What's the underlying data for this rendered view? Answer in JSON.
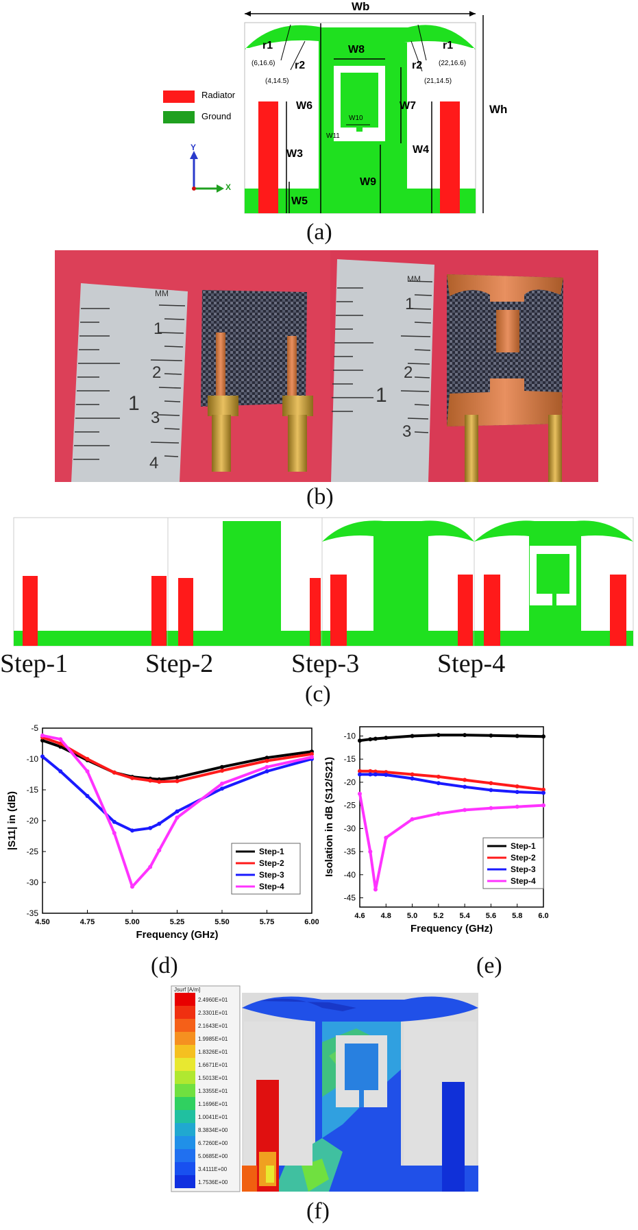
{
  "figure_a": {
    "caption": "(a)",
    "legend": {
      "radiator": "Radiator",
      "ground": "Ground"
    },
    "axes": {
      "y": "Y",
      "x": "X"
    },
    "dims": {
      "Wb": "Wb",
      "Wh": "Wh",
      "W3": "W3",
      "W4": "W4",
      "W5": "W5",
      "W6": "W6",
      "W7": "W7",
      "W8": "W8",
      "W9": "W9",
      "W10": "W10",
      "W11": "W11",
      "r1": "r1",
      "r2": "r2"
    },
    "points": {
      "p1": "(6,16.6)",
      "p2": "(4,14.5)",
      "p3": "(22,16.6)",
      "p4": "(21,14.5)"
    },
    "colors": {
      "radiator": "#ff1a1a",
      "ground": "#1fe01f"
    }
  },
  "figure_b": {
    "caption": "(b)",
    "ruler1": [
      "1",
      "2",
      "3",
      "4",
      "1",
      "MM"
    ],
    "ruler2": [
      "1",
      "2",
      "3",
      "1",
      "MM"
    ]
  },
  "figure_c": {
    "caption": "(c)",
    "steps": [
      "Step-1",
      "Step-2",
      "Step-3",
      "Step-4"
    ]
  },
  "figure_d": {
    "caption": "(d)",
    "chart_data": {
      "type": "line",
      "title": "",
      "xlabel": "Frequency (GHz)",
      "ylabel": "|S11| in (dB)",
      "xlim": [
        4.5,
        6.0
      ],
      "ylim": [
        -35,
        -5
      ],
      "xticks": [
        "4.50",
        "4.75",
        "5.00",
        "5.25",
        "5.50",
        "5.75",
        "6.00"
      ],
      "yticks": [
        "-5",
        "-10",
        "-15",
        "-20",
        "-25",
        "-30",
        "-35"
      ],
      "x": [
        4.5,
        4.6,
        4.75,
        4.9,
        5.0,
        5.1,
        5.15,
        5.25,
        5.5,
        5.75,
        6.0
      ],
      "series": [
        {
          "name": "Step-1",
          "color": "#000000",
          "values": [
            -7.0,
            -8.0,
            -10.2,
            -12.2,
            -12.9,
            -13.2,
            -13.3,
            -13.0,
            -11.3,
            -9.8,
            -8.8
          ]
        },
        {
          "name": "Step-2",
          "color": "#ff1a1a",
          "values": [
            -6.5,
            -7.5,
            -10.0,
            -12.2,
            -13.1,
            -13.5,
            -13.7,
            -13.6,
            -11.9,
            -10.3,
            -9.2
          ]
        },
        {
          "name": "Step-3",
          "color": "#1a1aff",
          "values": [
            -9.6,
            -12.0,
            -16.0,
            -20.2,
            -21.6,
            -21.2,
            -20.5,
            -18.5,
            -14.8,
            -12.0,
            -10.0
          ]
        },
        {
          "name": "Step-4",
          "color": "#ff33ff",
          "values": [
            -6.2,
            -6.8,
            -12.0,
            -22.0,
            -30.7,
            -27.5,
            -24.8,
            -19.5,
            -14.0,
            -11.3,
            -9.7
          ]
        }
      ],
      "legend": "bottom-right"
    }
  },
  "figure_e": {
    "caption": "(e)",
    "chart_data": {
      "type": "line",
      "title": "",
      "xlabel": "Frequency (GHz)",
      "ylabel": "Isolation in dB (S12/S21)",
      "xlim": [
        4.6,
        6.0
      ],
      "ylim": [
        -47,
        -8
      ],
      "xticks": [
        "4.6",
        "4.8",
        "5.0",
        "5.2",
        "5.4",
        "5.6",
        "5.8",
        "6.0"
      ],
      "yticks": [
        "-10",
        "-15",
        "-20",
        "-25",
        "-30",
        "-35",
        "-40",
        "-45"
      ],
      "x": [
        4.6,
        4.68,
        4.72,
        4.8,
        5.0,
        5.2,
        5.4,
        5.6,
        5.8,
        6.0
      ],
      "series": [
        {
          "name": "Step-1",
          "color": "#000000",
          "values": [
            -11.0,
            -10.7,
            -10.6,
            -10.4,
            -10.0,
            -9.8,
            -9.8,
            -9.9,
            -10.0,
            -10.1
          ]
        },
        {
          "name": "Step-2",
          "color": "#ff1a1a",
          "values": [
            -17.6,
            -17.6,
            -17.7,
            -17.8,
            -18.3,
            -18.8,
            -19.5,
            -20.2,
            -20.9,
            -21.6
          ]
        },
        {
          "name": "Step-3",
          "color": "#1a1aff",
          "values": [
            -18.3,
            -18.3,
            -18.3,
            -18.4,
            -19.2,
            -20.2,
            -21.0,
            -21.7,
            -22.1,
            -22.3
          ]
        },
        {
          "name": "Step-4",
          "color": "#ff33ff",
          "values": [
            -22.5,
            -35.0,
            -43.2,
            -32.0,
            -28.0,
            -26.8,
            -26.0,
            -25.6,
            -25.3,
            -25.0
          ]
        }
      ],
      "legend": "bottom-right"
    }
  },
  "figure_f": {
    "caption": "(f)",
    "legend_title": "Jsurf [A/m]",
    "legend_values": [
      "2.4960E+01",
      "2.3301E+01",
      "2.1643E+01",
      "1.9985E+01",
      "1.8326E+01",
      "1.6671E+01",
      "1.5013E+01",
      "1.3355E+01",
      "1.1696E+01",
      "1.0041E+01",
      "8.3834E+00",
      "6.7260E+00",
      "5.0685E+00",
      "3.4111E+00",
      "1.7536E+00"
    ],
    "legend_colors": [
      "#e80000",
      "#f03010",
      "#f56018",
      "#f59020",
      "#f5c020",
      "#e8e830",
      "#b0e830",
      "#70e040",
      "#30d060",
      "#20c0a0",
      "#20a8d0",
      "#2090e8",
      "#2070f0",
      "#1850f0",
      "#1030e0"
    ]
  }
}
